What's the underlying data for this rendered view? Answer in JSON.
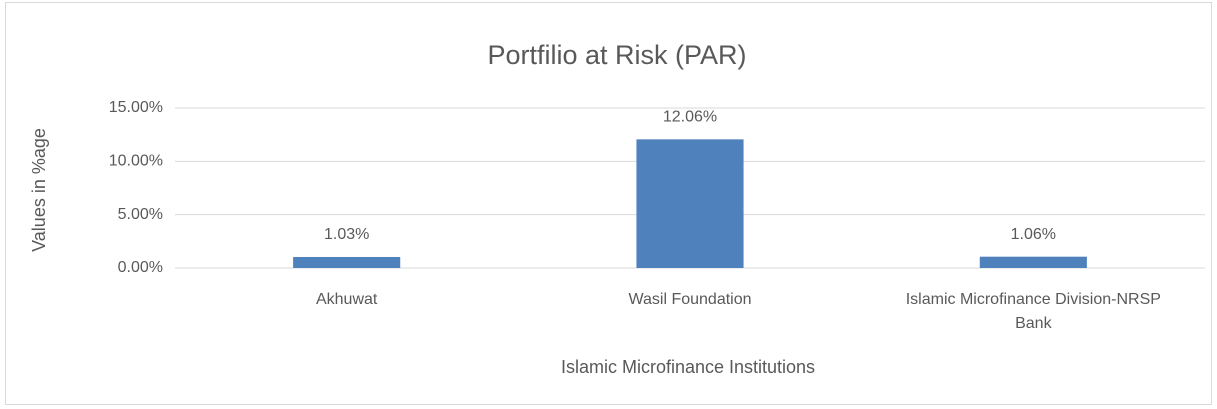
{
  "chart_data": {
    "type": "bar",
    "title": "Portfilio at Risk (PAR)",
    "y_label": "Values in %age",
    "x_label": "Islamic Microfinance Institutions",
    "categories": [
      "Akhuwat",
      "Wasil Foundation",
      "Islamic Microfinance Division-NRSP Bank"
    ],
    "values": [
      1.03,
      12.06,
      1.06
    ],
    "value_labels": [
      "1.03%",
      "12.06%",
      "1.06%"
    ],
    "color": "#4f81bd",
    "ylim": [
      0,
      15
    ],
    "yticks": [
      {
        "value": 0,
        "label": "0.00%"
      },
      {
        "value": 5,
        "label": "5.00%"
      },
      {
        "value": 10,
        "label": "10.00%"
      },
      {
        "value": 15,
        "label": "15.00%"
      }
    ],
    "grid": true
  }
}
